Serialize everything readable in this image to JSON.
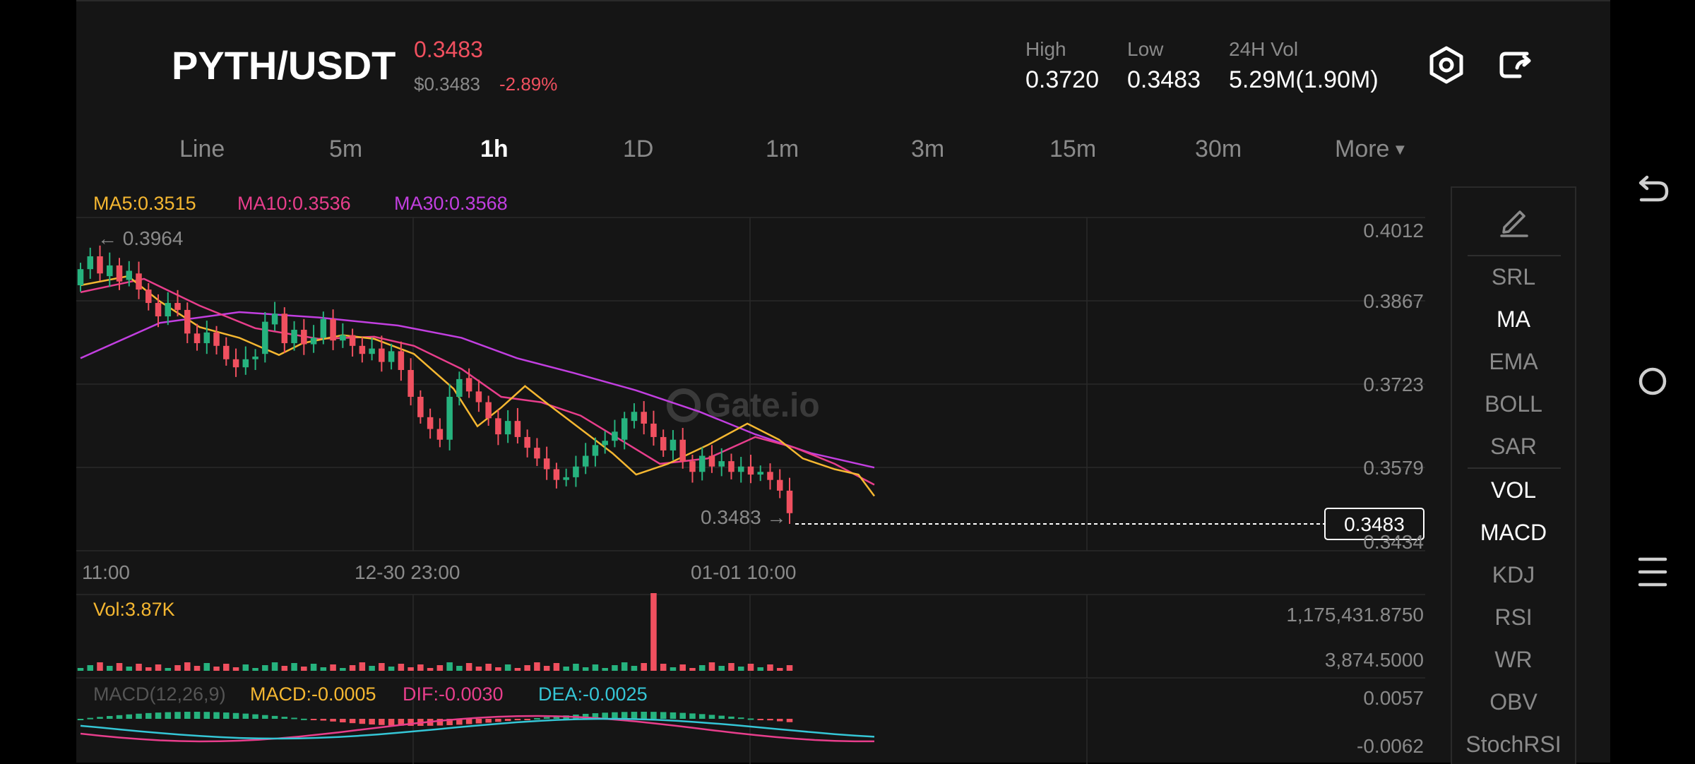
{
  "header": {
    "pair": "PYTH/USDT",
    "last_price": "0.3483",
    "usd_price": "$0.3483",
    "change": "-2.89%",
    "stats": [
      {
        "label": "High",
        "value": "0.3720"
      },
      {
        "label": "Low",
        "value": "0.3483"
      },
      {
        "label": "24H Vol",
        "value": "5.29M(1.90M)"
      }
    ],
    "icons": [
      "settings-hex-icon",
      "share-icon"
    ]
  },
  "timeframes": {
    "tabs": [
      "Line",
      "5m",
      "1h",
      "1D",
      "1m",
      "3m",
      "15m",
      "30m",
      "More"
    ],
    "active": "1h"
  },
  "ma_legend": {
    "ma5": "MA5:0.3515",
    "ma10": "MA10:0.3536",
    "ma30": "MA30:0.3568"
  },
  "colors": {
    "up": "#26b27e",
    "down": "#f0505f",
    "ma5": "#f5b731",
    "ma10": "#e83e8c",
    "ma30": "#c23fe0",
    "dea": "#35c6d6"
  },
  "chart": {
    "y_axis": [
      "0.4012",
      "0.3867",
      "0.3723",
      "0.3579",
      "0.3434"
    ],
    "x_axis": [
      "11:00",
      "12-30 23:00",
      "01-01 10:00"
    ],
    "max_label": "← 0.3964",
    "last_label": "0.3483 →",
    "current_price_tag": "0.3483",
    "watermark": "Gate.io"
  },
  "chart_data": {
    "type": "candlestick",
    "y_range": [
      0.3434,
      0.4012
    ],
    "candles": [
      [
        0.3908,
        0.3938
      ],
      [
        0.3938,
        0.3962
      ],
      [
        0.3962,
        0.393
      ],
      [
        0.3925,
        0.3945
      ],
      [
        0.3945,
        0.3915
      ],
      [
        0.3918,
        0.3935
      ],
      [
        0.393,
        0.39
      ],
      [
        0.39,
        0.3875
      ],
      [
        0.3875,
        0.385
      ],
      [
        0.385,
        0.3875
      ],
      [
        0.3875,
        0.3862
      ],
      [
        0.3862,
        0.3818
      ],
      [
        0.3818,
        0.38
      ],
      [
        0.38,
        0.382
      ],
      [
        0.382,
        0.3795
      ],
      [
        0.3795,
        0.377
      ],
      [
        0.377,
        0.3755
      ],
      [
        0.3755,
        0.377
      ],
      [
        0.377,
        0.3775
      ],
      [
        0.378,
        0.384
      ],
      [
        0.3835,
        0.3855
      ],
      [
        0.3855,
        0.38
      ],
      [
        0.38,
        0.3825
      ],
      [
        0.3825,
        0.3798
      ],
      [
        0.3798,
        0.381
      ],
      [
        0.381,
        0.3845
      ],
      [
        0.3845,
        0.3805
      ],
      [
        0.3805,
        0.3815
      ],
      [
        0.3815,
        0.3795
      ],
      [
        0.3795,
        0.378
      ],
      [
        0.378,
        0.379
      ],
      [
        0.379,
        0.3765
      ],
      [
        0.3765,
        0.3785
      ],
      [
        0.3785,
        0.375
      ],
      [
        0.375,
        0.37
      ],
      [
        0.37,
        0.3662
      ],
      [
        0.3662,
        0.364
      ],
      [
        0.364,
        0.362
      ],
      [
        0.362,
        0.37
      ],
      [
        0.37,
        0.3733
      ],
      [
        0.3735,
        0.371
      ],
      [
        0.371,
        0.369
      ],
      [
        0.369,
        0.366
      ],
      [
        0.366,
        0.363
      ],
      [
        0.363,
        0.3655
      ],
      [
        0.3655,
        0.3625
      ],
      [
        0.3625,
        0.3605
      ],
      [
        0.3605,
        0.3585
      ],
      [
        0.3585,
        0.3565
      ],
      [
        0.3565,
        0.3545
      ],
      [
        0.3545,
        0.355
      ],
      [
        0.355,
        0.357
      ],
      [
        0.357,
        0.359
      ],
      [
        0.359,
        0.361
      ],
      [
        0.361,
        0.3618
      ],
      [
        0.3618,
        0.3635
      ],
      [
        0.362,
        0.366
      ],
      [
        0.3655,
        0.3672
      ],
      [
        0.3672,
        0.365
      ],
      [
        0.365,
        0.3625
      ],
      [
        0.3625,
        0.36
      ],
      [
        0.36,
        0.362
      ],
      [
        0.362,
        0.358
      ],
      [
        0.358,
        0.356
      ],
      [
        0.356,
        0.359
      ],
      [
        0.359,
        0.357
      ],
      [
        0.357,
        0.358
      ],
      [
        0.358,
        0.356
      ],
      [
        0.356,
        0.357
      ],
      [
        0.357,
        0.3555
      ],
      [
        0.3555,
        0.356
      ],
      [
        0.356,
        0.3545
      ],
      [
        0.3545,
        0.3525
      ],
      [
        0.3525,
        0.3483
      ]
    ],
    "ma5": [
      [
        0,
        0.3908
      ],
      [
        0.06,
        0.3925
      ],
      [
        0.1,
        0.3878
      ],
      [
        0.15,
        0.383
      ],
      [
        0.2,
        0.381
      ],
      [
        0.25,
        0.3778
      ],
      [
        0.28,
        0.38
      ],
      [
        0.33,
        0.3815
      ],
      [
        0.37,
        0.3808
      ],
      [
        0.42,
        0.378
      ],
      [
        0.47,
        0.3715
      ],
      [
        0.5,
        0.3645
      ],
      [
        0.53,
        0.368
      ],
      [
        0.56,
        0.372
      ],
      [
        0.59,
        0.3685
      ],
      [
        0.63,
        0.364
      ],
      [
        0.67,
        0.3595
      ],
      [
        0.7,
        0.3555
      ],
      [
        0.74,
        0.3575
      ],
      [
        0.79,
        0.361
      ],
      [
        0.84,
        0.365
      ],
      [
        0.88,
        0.362
      ],
      [
        0.91,
        0.3585
      ],
      [
        0.95,
        0.3565
      ],
      [
        0.98,
        0.3555
      ],
      [
        1.0,
        0.3515
      ]
    ],
    "ma10": [
      [
        0,
        0.3895
      ],
      [
        0.08,
        0.392
      ],
      [
        0.15,
        0.387
      ],
      [
        0.22,
        0.3828
      ],
      [
        0.3,
        0.3808
      ],
      [
        0.37,
        0.3812
      ],
      [
        0.42,
        0.3795
      ],
      [
        0.48,
        0.3752
      ],
      [
        0.53,
        0.37
      ],
      [
        0.58,
        0.369
      ],
      [
        0.63,
        0.3665
      ],
      [
        0.68,
        0.362
      ],
      [
        0.73,
        0.3575
      ],
      [
        0.79,
        0.3585
      ],
      [
        0.85,
        0.3625
      ],
      [
        0.9,
        0.3605
      ],
      [
        0.95,
        0.3575
      ],
      [
        1.0,
        0.3536
      ]
    ],
    "ma30": [
      [
        0,
        0.3772
      ],
      [
        0.1,
        0.3838
      ],
      [
        0.2,
        0.3858
      ],
      [
        0.3,
        0.3848
      ],
      [
        0.4,
        0.3833
      ],
      [
        0.48,
        0.381
      ],
      [
        0.55,
        0.3772
      ],
      [
        0.62,
        0.3745
      ],
      [
        0.7,
        0.3712
      ],
      [
        0.78,
        0.3672
      ],
      [
        0.85,
        0.363
      ],
      [
        0.92,
        0.3595
      ],
      [
        1.0,
        0.3568
      ]
    ]
  },
  "volume": {
    "legend": "Vol:3.87K",
    "max_label": "1,175,431.8750",
    "last_label": "3,874.5000"
  },
  "macd": {
    "params": "MACD(12,26,9)",
    "macd": "MACD:-0.0005",
    "dif": "DIF:-0.0030",
    "dea": "DEA:-0.0025",
    "y_top": "0.0057",
    "y_bottom": "-0.0062"
  },
  "indicators": {
    "items": [
      "SRL",
      "MA",
      "EMA",
      "BOLL",
      "SAR",
      "VOL",
      "MACD",
      "KDJ",
      "RSI",
      "WR",
      "OBV",
      "StochRSI"
    ],
    "active": [
      "MA",
      "VOL",
      "MACD"
    ]
  }
}
